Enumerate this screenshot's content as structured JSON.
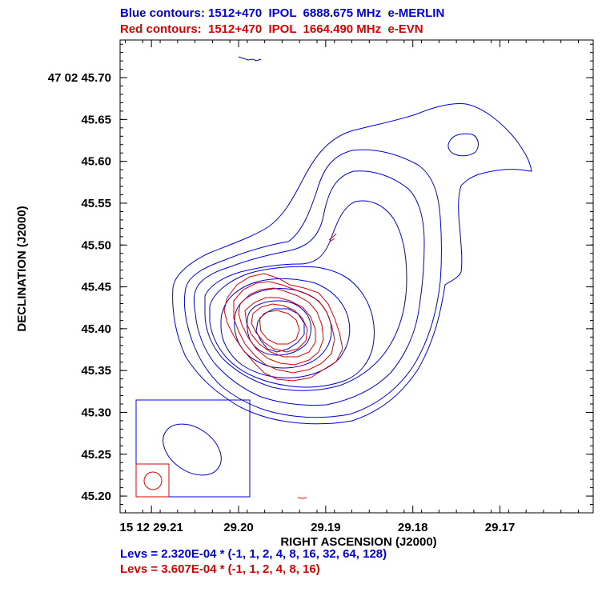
{
  "header": {
    "blue_line": "Blue contours: 1512+470  IPOL  6888.675 MHz  e-MERLIN",
    "red_line": "Red contours:  1512+470  IPOL  1664.490 MHz  e-EVN"
  },
  "levels": {
    "blue_line": "Levs = 2.320E-04 * (-1, 1, 2, 4, 8, 16, 32, 64, 128)",
    "red_line": "Levs = 3.607E-04 * (-1, 1, 2, 4, 8, 16)"
  },
  "colors": {
    "blue": "#0000dd",
    "red": "#dd0000",
    "frame": "#000000"
  },
  "chart_data": {
    "type": "contour",
    "xlabel": "RIGHT ASCENSION (J2000)",
    "ylabel": "DECLINATION (J2000)",
    "x_ticks": [
      {
        "value": 29.21,
        "label": "15 12 29.21"
      },
      {
        "value": 29.2,
        "label": "29.20"
      },
      {
        "value": 29.19,
        "label": "29.19"
      },
      {
        "value": 29.18,
        "label": "29.18"
      },
      {
        "value": 29.17,
        "label": "29.17"
      }
    ],
    "y_ticks": [
      {
        "value": 45.7,
        "label": "47 02 45.70"
      },
      {
        "value": 45.65,
        "label": "45.65"
      },
      {
        "value": 45.6,
        "label": "45.60"
      },
      {
        "value": 45.55,
        "label": "45.55"
      },
      {
        "value": 45.5,
        "label": "45.50"
      },
      {
        "value": 45.45,
        "label": "45.45"
      },
      {
        "value": 45.4,
        "label": "45.40"
      },
      {
        "value": 45.35,
        "label": "45.35"
      },
      {
        "value": 45.3,
        "label": "45.30"
      },
      {
        "value": 45.25,
        "label": "45.25"
      },
      {
        "value": 45.2,
        "label": "45.20"
      }
    ],
    "xlim": [
      29.2136,
      29.1593
    ],
    "ylim": [
      45.18,
      45.745
    ],
    "series": [
      {
        "name": "Blue contours: 1512+470  IPOL  6888.675 MHz  e-MERLIN",
        "frequency_mhz": 6888.675,
        "level_base": 0.000232,
        "levels": [
          -1,
          1,
          2,
          4,
          8,
          16,
          32,
          64,
          128
        ],
        "peak": {
          "ra": 29.1978,
          "dec": 45.395
        }
      },
      {
        "name": "Red contours:  1512+470  IPOL  1664.490 MHz  e-EVN",
        "frequency_mhz": 1664.49,
        "level_base": 0.0003607,
        "levels": [
          -1,
          1,
          2,
          4,
          8,
          16
        ],
        "peak": {
          "ra": 29.1972,
          "dec": 45.405
        }
      }
    ]
  }
}
